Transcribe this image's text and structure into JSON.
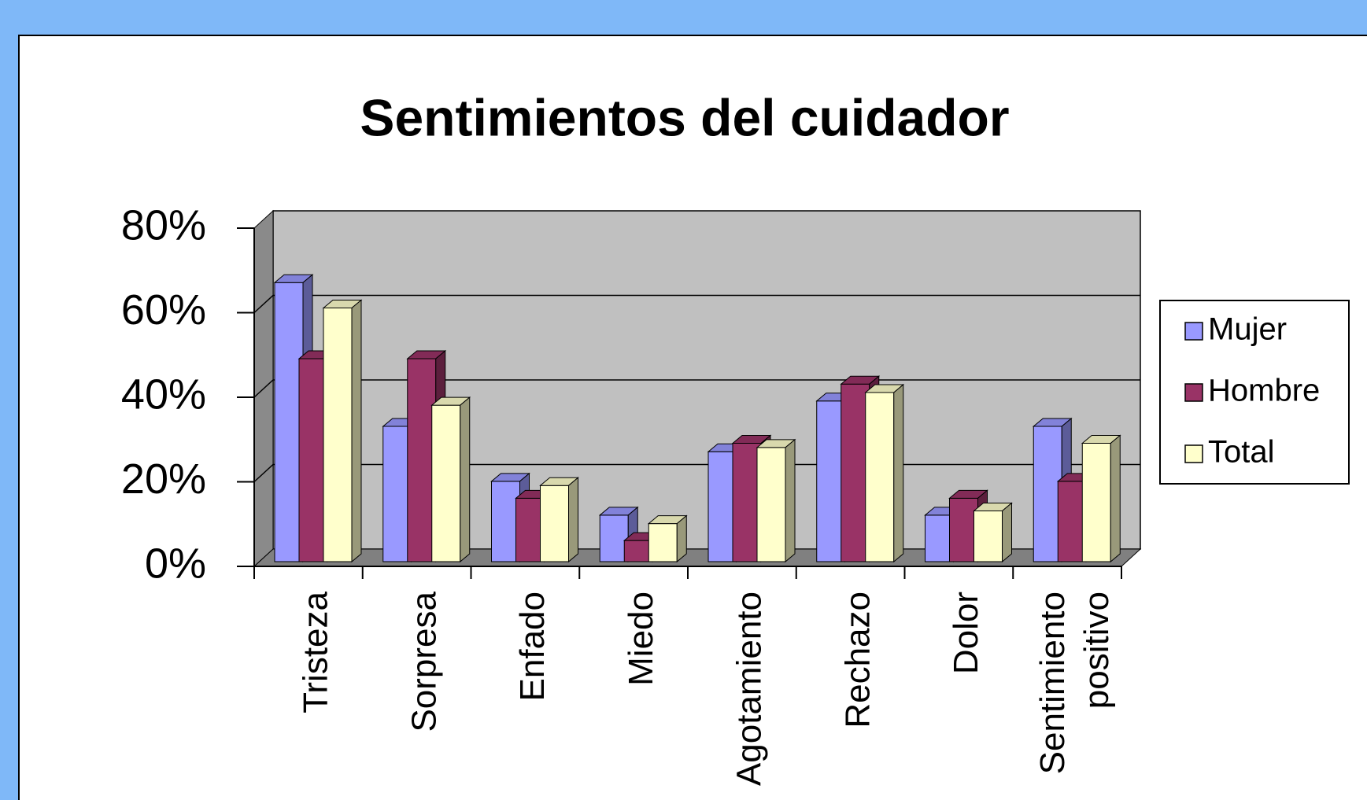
{
  "chart_data": {
    "type": "bar3d",
    "title": "Sentimientos del cuidador",
    "categories": [
      "Tristeza",
      "Sorpresa",
      "Enfado",
      "Miedo",
      "Agotamiento",
      "Rechazo",
      "Dolor",
      "Sentimiento positivo"
    ],
    "series": [
      {
        "name": "Mujer",
        "color": "#9999ff",
        "values": [
          66,
          32,
          19,
          11,
          26,
          38,
          11,
          32
        ]
      },
      {
        "name": "Hombre",
        "color": "#993366",
        "values": [
          48,
          48,
          15,
          5,
          28,
          42,
          15,
          19
        ]
      },
      {
        "name": "Total",
        "color": "#ffffcc",
        "values": [
          60,
          37,
          18,
          9,
          27,
          40,
          12,
          28
        ]
      }
    ],
    "ylim": [
      0,
      80
    ],
    "yticks": [
      {
        "value": 0,
        "label": "0%"
      },
      {
        "value": 20,
        "label": "20%"
      },
      {
        "value": 40,
        "label": "40%"
      },
      {
        "value": 60,
        "label": "60%"
      },
      {
        "value": 80,
        "label": "80%"
      }
    ],
    "grid": true,
    "legend": "right"
  }
}
